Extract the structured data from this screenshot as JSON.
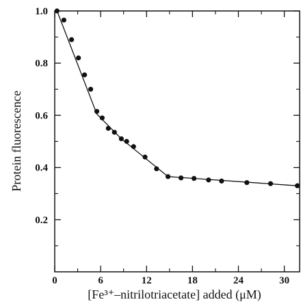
{
  "chart_data": {
    "type": "scatter",
    "xlabel": "[Fe³⁺–nitrilotriacetate] added (μM)",
    "ylabel": "Protein fluorescence",
    "xlim": [
      0,
      32
    ],
    "ylim": [
      0,
      1.0
    ],
    "x_ticks": [
      0,
      6,
      12,
      18,
      24,
      30
    ],
    "y_ticks": [
      0.2,
      0.4,
      0.6,
      0.8,
      1.0
    ],
    "y_tick_labels": [
      "0.2",
      "0.4",
      "0.6",
      "0.8",
      "1.0"
    ],
    "x_minor_ticks": [
      3,
      9,
      15,
      21,
      27
    ],
    "y_minor_ticks": [
      0.1,
      0.3,
      0.5,
      0.7,
      0.9
    ],
    "grid": false,
    "series": [
      {
        "points": [
          [
            0.3,
            1.0
          ],
          [
            1.2,
            0.965
          ],
          [
            2.2,
            0.89
          ],
          [
            3.1,
            0.82
          ],
          [
            3.9,
            0.755
          ],
          [
            4.7,
            0.7
          ],
          [
            5.5,
            0.615
          ],
          [
            6.2,
            0.59
          ],
          [
            7.0,
            0.55
          ],
          [
            7.8,
            0.535
          ],
          [
            8.7,
            0.51
          ],
          [
            9.4,
            0.5
          ],
          [
            10.3,
            0.48
          ],
          [
            11.8,
            0.44
          ],
          [
            13.3,
            0.395
          ],
          [
            14.8,
            0.365
          ],
          [
            16.5,
            0.36
          ],
          [
            18.2,
            0.358
          ],
          [
            20.1,
            0.352
          ],
          [
            21.8,
            0.348
          ],
          [
            25.1,
            0.342
          ],
          [
            28.2,
            0.338
          ],
          [
            31.7,
            0.33
          ]
        ]
      }
    ],
    "fit_line": [
      [
        0.3,
        1.0
      ],
      [
        5.5,
        0.605
      ],
      [
        8.7,
        0.51
      ],
      [
        14.8,
        0.365
      ],
      [
        31.7,
        0.33
      ]
    ]
  }
}
